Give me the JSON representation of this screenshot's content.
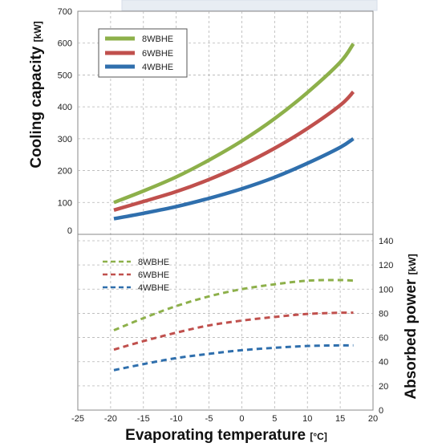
{
  "chart_data": {
    "type": "line",
    "x_axis": {
      "label": "Evaporating temperature",
      "unit": "[°C]",
      "ticks": [
        "-25",
        "-20",
        "-15",
        "-10",
        "-5",
        "0",
        "5",
        "10",
        "15",
        "20"
      ],
      "range": [
        -25,
        20
      ]
    },
    "top_panel": {
      "ylabel": "Cooling capacity",
      "yunit": "[kW]",
      "ylim": [
        0,
        700
      ],
      "yticks": [
        "0",
        "100",
        "200",
        "300",
        "400",
        "500",
        "600",
        "700"
      ],
      "legend_position": "top-left",
      "series": [
        {
          "name": "8WBHE",
          "color": "#8db04a",
          "style": "solid",
          "points": [
            [
              -19.5,
              100
            ],
            [
              -15,
              136
            ],
            [
              -10,
              180
            ],
            [
              -5,
              233
            ],
            [
              0,
              293
            ],
            [
              5,
              363
            ],
            [
              10,
              445
            ],
            [
              15,
              540
            ],
            [
              17,
              598
            ]
          ]
        },
        {
          "name": "6WBHE",
          "color": "#c0504d",
          "style": "solid",
          "points": [
            [
              -19.5,
              76
            ],
            [
              -15,
              103
            ],
            [
              -10,
              134
            ],
            [
              -5,
              172
            ],
            [
              0,
              217
            ],
            [
              5,
              270
            ],
            [
              10,
              332
            ],
            [
              15,
              405
            ],
            [
              17,
              447
            ]
          ]
        },
        {
          "name": "4WBHE",
          "color": "#2f6fad",
          "style": "solid",
          "points": [
            [
              -19.5,
              49
            ],
            [
              -15,
              66
            ],
            [
              -10,
              87
            ],
            [
              -5,
              113
            ],
            [
              0,
              143
            ],
            [
              5,
              179
            ],
            [
              10,
              223
            ],
            [
              15,
              273
            ],
            [
              17,
              300
            ]
          ]
        }
      ]
    },
    "bottom_panel": {
      "ylabel": "Absorbed power",
      "yunit": "[kW]",
      "ylim": [
        0,
        140
      ],
      "yticks": [
        "0",
        "20",
        "40",
        "60",
        "80",
        "100",
        "120",
        "140"
      ],
      "legend_position": "top-left",
      "series": [
        {
          "name": "8WBHE",
          "color": "#8db04a",
          "style": "dashed",
          "points": [
            [
              -19.5,
              66
            ],
            [
              -15,
              76
            ],
            [
              -10,
              86
            ],
            [
              -5,
              94
            ],
            [
              0,
              100
            ],
            [
              5,
              104
            ],
            [
              10,
              107
            ],
            [
              15,
              107.5
            ],
            [
              17,
              107
            ]
          ]
        },
        {
          "name": "6WBHE",
          "color": "#c0504d",
          "style": "dashed",
          "points": [
            [
              -19.5,
              50
            ],
            [
              -15,
              57
            ],
            [
              -10,
              64
            ],
            [
              -5,
              70
            ],
            [
              0,
              74
            ],
            [
              5,
              77
            ],
            [
              10,
              79.5
            ],
            [
              15,
              80.5
            ],
            [
              17,
              80.5
            ]
          ]
        },
        {
          "name": "4WBHE",
          "color": "#2f6fad",
          "style": "dashed",
          "points": [
            [
              -19.5,
              33
            ],
            [
              -15,
              38
            ],
            [
              -10,
              43
            ],
            [
              -5,
              46.5
            ],
            [
              0,
              49.5
            ],
            [
              5,
              51.5
            ],
            [
              10,
              53
            ],
            [
              15,
              53.5
            ],
            [
              17,
              53.5
            ]
          ]
        }
      ]
    },
    "grid": true
  }
}
